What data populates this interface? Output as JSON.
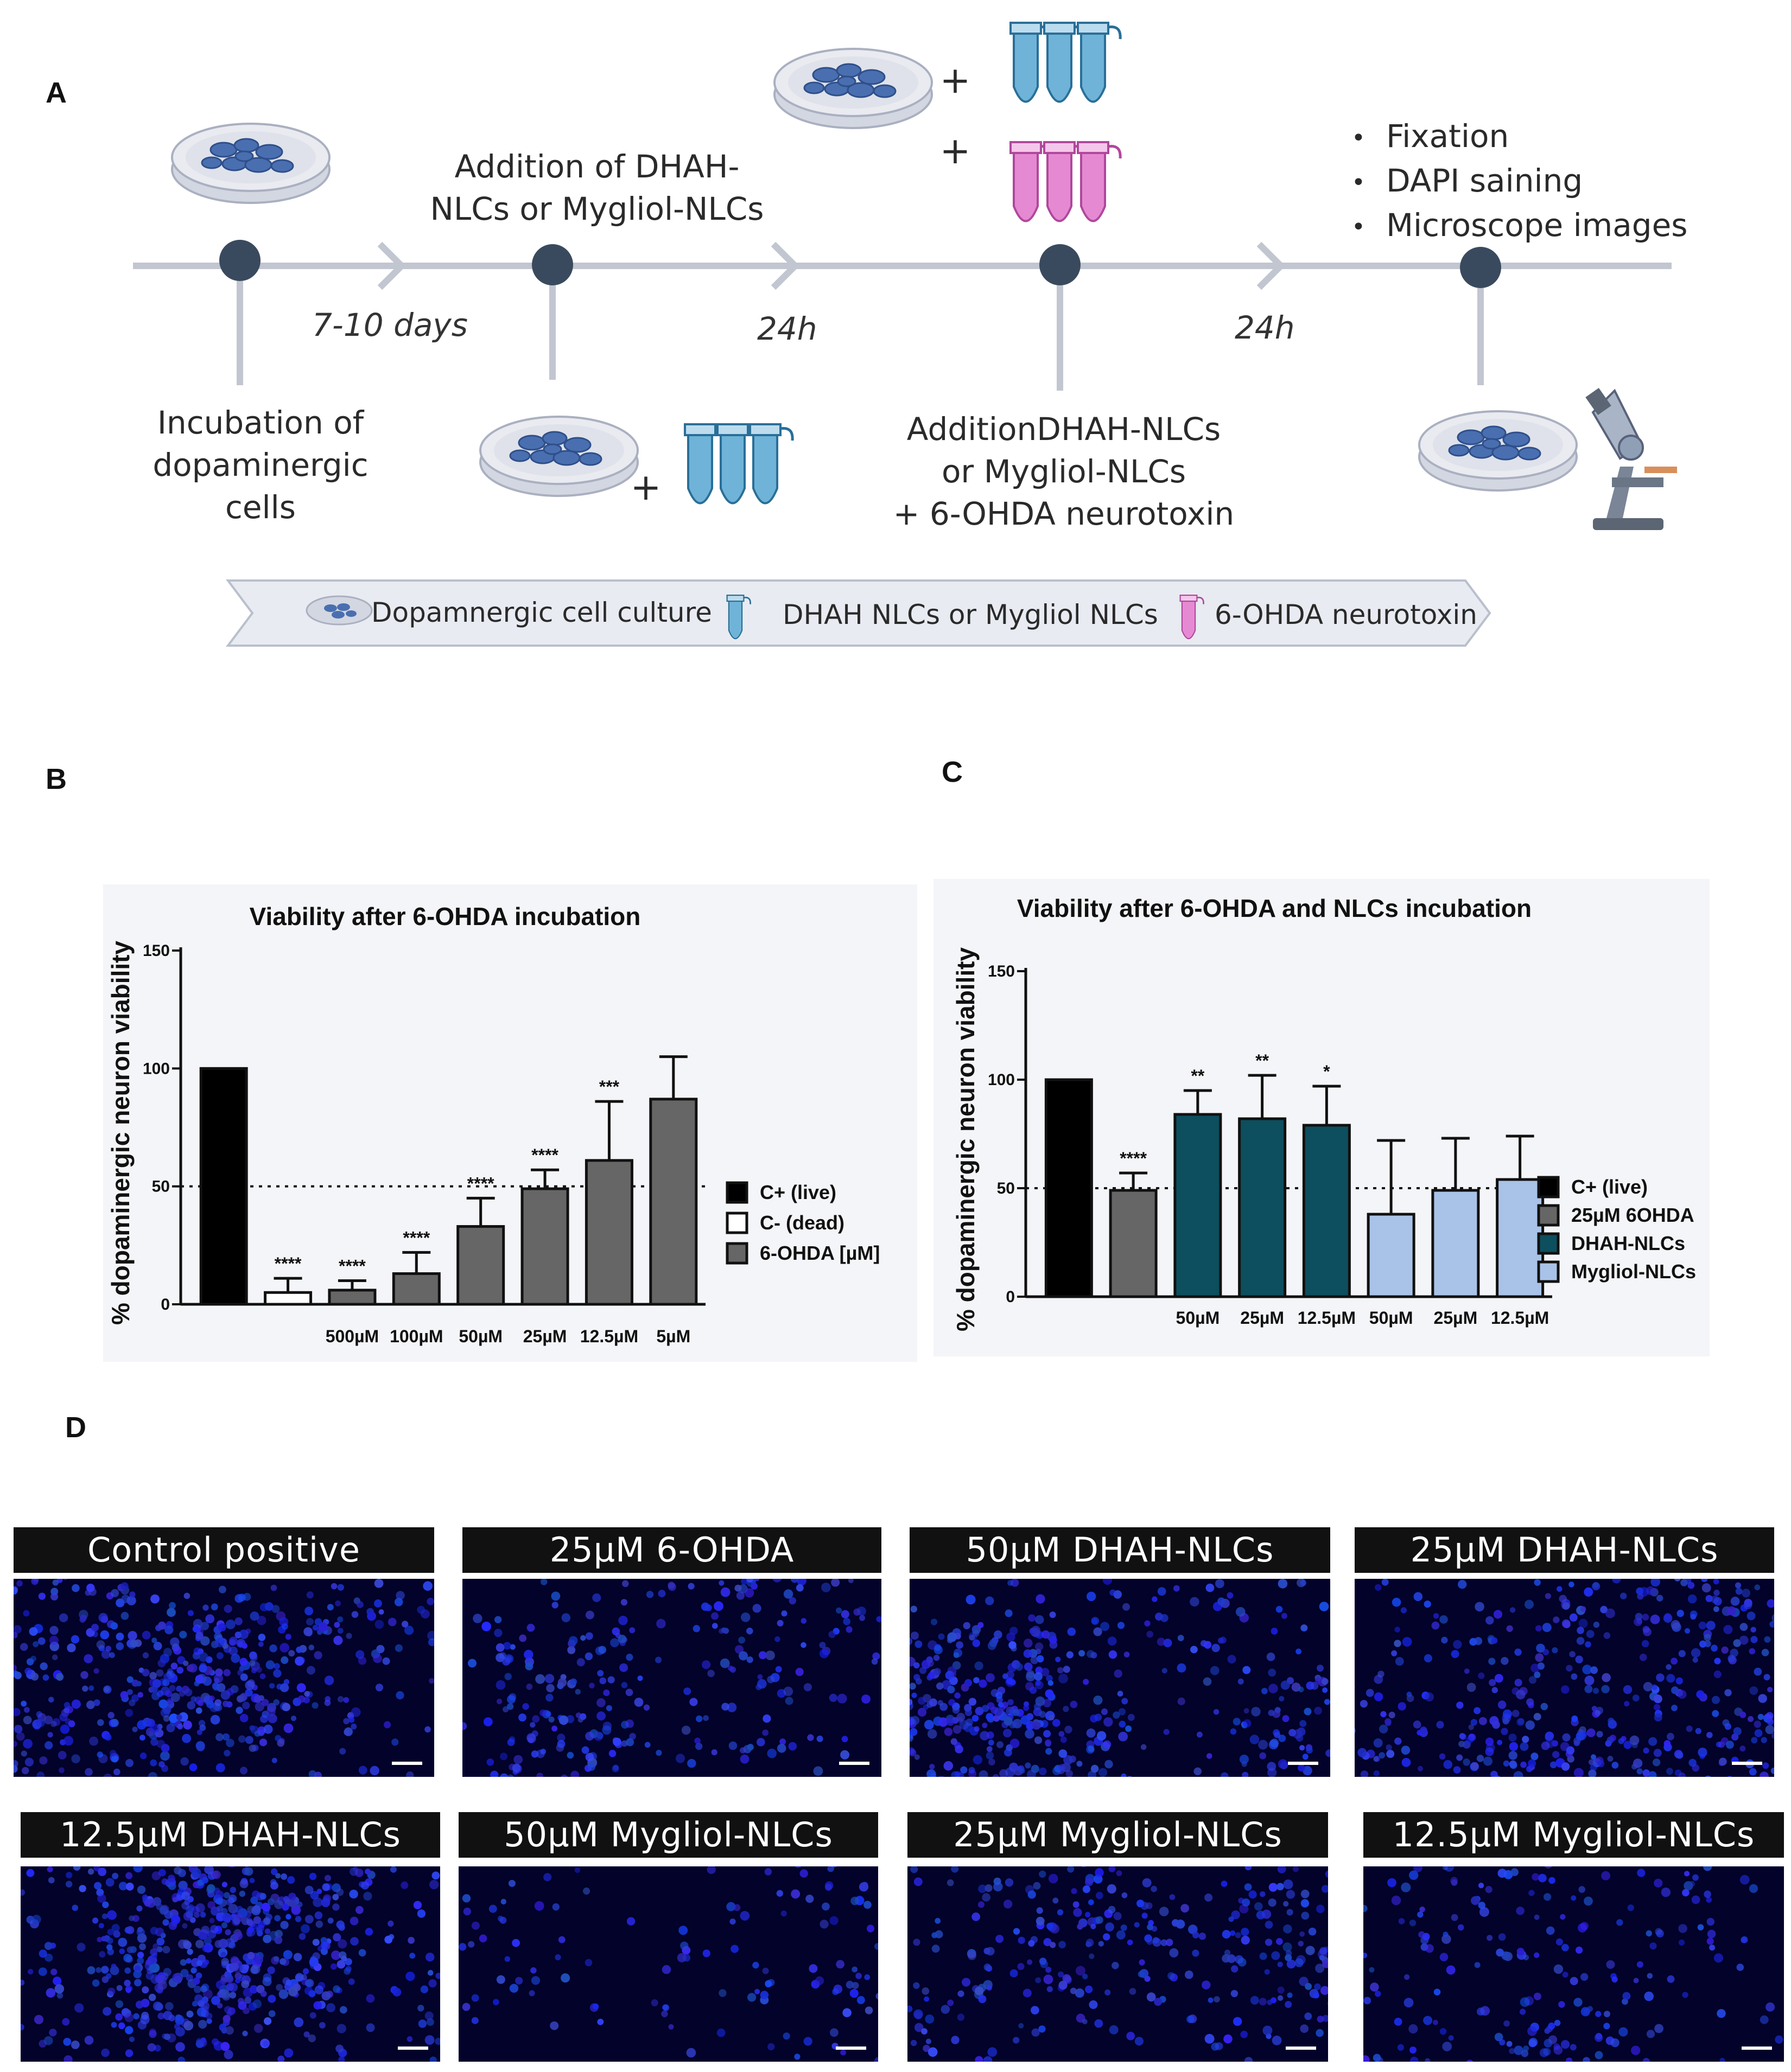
{
  "panels": {
    "A": "A",
    "B": "B",
    "C": "C",
    "D": "D"
  },
  "timeline": {
    "step1": [
      "Incubation of",
      "dopaminergic",
      "cells"
    ],
    "step2": [
      "Addition of  DHAH-",
      "NLCs or Mygliol-NLCs"
    ],
    "step3": [
      "AdditionDHAH-NLCs",
      "or Mygliol-NLCs",
      "+  6-OHDA neurotoxin"
    ],
    "step4_bullets": [
      "Fixation",
      "DAPI saining",
      "Microscope images"
    ],
    "dur1": "7-10 days",
    "dur2": "24h",
    "dur3": "24h",
    "plus": "+"
  },
  "legend_banner": {
    "item1": "Dopamnergic cell culture",
    "item2": "DHAH NLCs or Mygliol NLCs",
    "item3": "6-OHDA neurotoxin"
  },
  "colors": {
    "dish": "#b9bfd0",
    "cell": "#4a6fb0",
    "tube_blue": "#6fb4d8",
    "tube_pink": "#e58ad2",
    "c_live": "#000000",
    "ohda_gray": "#666666",
    "dhah_teal": "#0d4f5e",
    "mygliol_lightblue": "#a9c3e8"
  },
  "chart_data": [
    {
      "id": "B",
      "type": "bar",
      "title": "Viability after 6-OHDA incubation",
      "ylabel": "% dopaminergic neuron viability",
      "ylim": [
        0,
        150
      ],
      "yticks": [
        "0",
        "50",
        "100",
        "150"
      ],
      "reference_line": 50,
      "categories": [
        "C+ (live)",
        "C- (dead)",
        "500µM",
        "100µM",
        "50µM",
        "25µM",
        "12.5µM",
        "5µM"
      ],
      "xtick_labels": [
        "",
        "",
        "500µM",
        "100µM",
        "50µM",
        "25µM",
        "12.5µM",
        "5µM"
      ],
      "values": [
        100,
        5,
        6,
        13,
        33,
        49,
        61,
        87
      ],
      "errors": [
        0,
        6,
        4,
        9,
        12,
        8,
        25,
        18
      ],
      "groups": [
        "live",
        "dead",
        "ohda",
        "ohda",
        "ohda",
        "ohda",
        "ohda",
        "ohda"
      ],
      "significance": [
        "",
        "****",
        "****",
        "****",
        "****",
        "****",
        "***",
        ""
      ],
      "legend": [
        {
          "key": "live",
          "label": "C+ (live)"
        },
        {
          "key": "dead",
          "label": "C- (dead)"
        },
        {
          "key": "ohda",
          "label": "6-OHDA [µM]"
        }
      ],
      "legend_position": "right"
    },
    {
      "id": "C",
      "type": "bar",
      "title": "Viability after 6-OHDA and NLCs incubation",
      "ylabel": "% dopaminergic neuron viability",
      "ylim": [
        0,
        150
      ],
      "yticks": [
        "0",
        "50",
        "100",
        "150"
      ],
      "reference_line": 50,
      "categories": [
        "C+ (live)",
        "25µM 6OHDA",
        "50µM",
        "25µM",
        "12.5µM",
        "50µM",
        "25µM",
        "12.5µM"
      ],
      "xtick_labels": [
        "",
        "",
        "50µM",
        "25µM",
        "12.5µM",
        "50µM",
        "25µM",
        "12.5µM"
      ],
      "values": [
        100,
        49,
        84,
        82,
        79,
        38,
        49,
        54
      ],
      "errors": [
        0,
        8,
        11,
        20,
        18,
        34,
        24,
        20
      ],
      "groups": [
        "live",
        "ohda",
        "dhah",
        "dhah",
        "dhah",
        "mygliol",
        "mygliol",
        "mygliol"
      ],
      "significance": [
        "",
        "****",
        "**",
        "**",
        "*",
        "",
        "",
        ""
      ],
      "legend": [
        {
          "key": "live",
          "label": "C+ (live)"
        },
        {
          "key": "ohda",
          "label": "25µM 6OHDA"
        },
        {
          "key": "dhah",
          "label": "DHAH-NLCs"
        },
        {
          "key": "mygliol",
          "label": "Mygliol-NLCs"
        }
      ],
      "legend_position": "right"
    }
  ],
  "micrographs": [
    {
      "label": "Control positive",
      "density": 1.0
    },
    {
      "label": "25µM 6-OHDA",
      "density": 0.55
    },
    {
      "label": "50µM DHAH-NLCs",
      "density": 0.9
    },
    {
      "label": "25µM DHAH-NLCs",
      "density": 0.95
    },
    {
      "label": "12.5µM DHAH-NLCs",
      "density": 1.2
    },
    {
      "label": "50µM  Mygliol-NLCs",
      "density": 0.25
    },
    {
      "label": "25µM  Mygliol-NLCs",
      "density": 0.6
    },
    {
      "label": "12.5µM  Mygliol-NLCs",
      "density": 0.45
    }
  ]
}
